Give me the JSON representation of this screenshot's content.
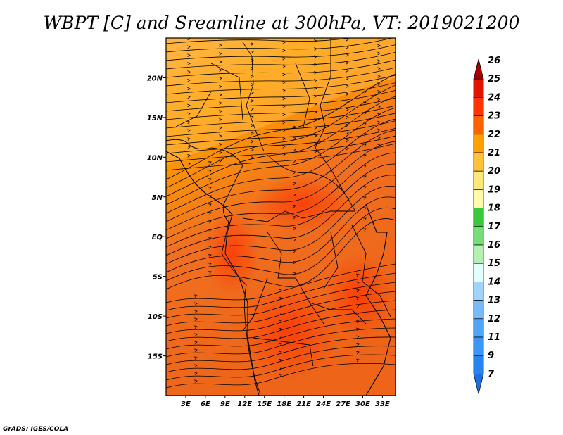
{
  "title": "WBPT [C] and Sreamline at 300hPa, VT: 2019021200",
  "credit": "GrADS: IGES/COLA",
  "map": {
    "lon_range": [
      0,
      35
    ],
    "lat_range": [
      -20,
      25
    ],
    "x_ticks": [
      "3E",
      "6E",
      "9E",
      "12E",
      "15E",
      "18E",
      "21E",
      "24E",
      "27E",
      "30E",
      "33E"
    ],
    "x_tick_values": [
      3,
      6,
      9,
      12,
      15,
      18,
      21,
      24,
      27,
      30,
      33
    ],
    "y_ticks": [
      "20N",
      "15N",
      "10N",
      "5N",
      "EQ",
      "5S",
      "10S",
      "15S"
    ],
    "y_tick_values": [
      20,
      15,
      10,
      5,
      0,
      -5,
      -10,
      -15
    ]
  },
  "colorbar": {
    "labels": [
      "7",
      "9",
      "11",
      "12",
      "13",
      "14",
      "15",
      "16",
      "17",
      "18",
      "19",
      "20",
      "21",
      "22",
      "23",
      "24",
      "25",
      "26"
    ],
    "colors": [
      "#1e6edc",
      "#2882f0",
      "#3c96f5",
      "#50a5f5",
      "#78b9fa",
      "#a0d2fa",
      "#e1ffff",
      "#b4f0b4",
      "#78dc78",
      "#37c83c",
      "#fffaaa",
      "#ffe878",
      "#ffc03c",
      "#ffa000",
      "#ff6000",
      "#ff3200",
      "#e11400",
      "#a50000"
    ]
  }
}
